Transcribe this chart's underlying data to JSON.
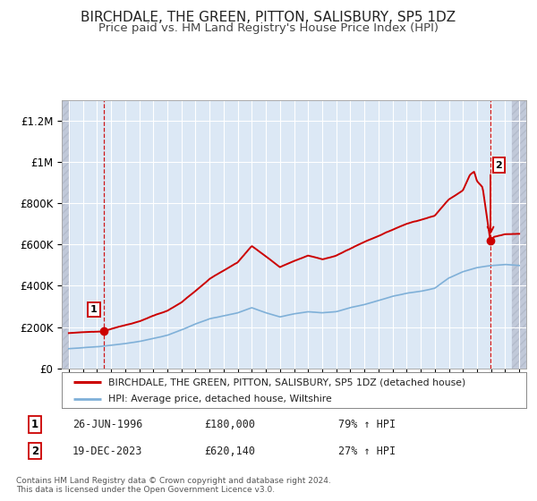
{
  "title": "BIRCHDALE, THE GREEN, PITTON, SALISBURY, SP5 1DZ",
  "subtitle": "Price paid vs. HM Land Registry's House Price Index (HPI)",
  "title_fontsize": 11,
  "subtitle_fontsize": 9.5,
  "background_color": "#ffffff",
  "plot_bg_color": "#dce8f5",
  "grid_color": "#ffffff",
  "red_line_color": "#cc0000",
  "blue_line_color": "#7fb0d8",
  "xlim": [
    1993.5,
    2026.5
  ],
  "ylim": [
    0,
    1300000
  ],
  "yticks": [
    0,
    200000,
    400000,
    600000,
    800000,
    1000000,
    1200000
  ],
  "ytick_labels": [
    "£0",
    "£200K",
    "£400K",
    "£600K",
    "£800K",
    "£1M",
    "£1.2M"
  ],
  "xticks": [
    1994,
    1995,
    1996,
    1997,
    1998,
    1999,
    2000,
    2001,
    2002,
    2003,
    2004,
    2005,
    2006,
    2007,
    2008,
    2009,
    2010,
    2011,
    2012,
    2013,
    2014,
    2015,
    2016,
    2017,
    2018,
    2019,
    2020,
    2021,
    2022,
    2023,
    2024,
    2025,
    2026
  ],
  "sale1_x": 1996.48,
  "sale1_y": 180000,
  "sale2_x": 2023.96,
  "sale2_y": 620140,
  "sale2_peak_y": 950000,
  "legend_label1": "BIRCHDALE, THE GREEN, PITTON, SALISBURY, SP5 1DZ (detached house)",
  "legend_label2": "HPI: Average price, detached house, Wiltshire",
  "sale1_date": "26-JUN-1996",
  "sale1_price": "£180,000",
  "sale1_hpi": "79% ↑ HPI",
  "sale2_date": "19-DEC-2023",
  "sale2_price": "£620,140",
  "sale2_hpi": "27% ↑ HPI",
  "footer1": "Contains HM Land Registry data © Crown copyright and database right 2024.",
  "footer2": "This data is licensed under the Open Government Licence v3.0.",
  "hatch_color": "#c0c8d8"
}
